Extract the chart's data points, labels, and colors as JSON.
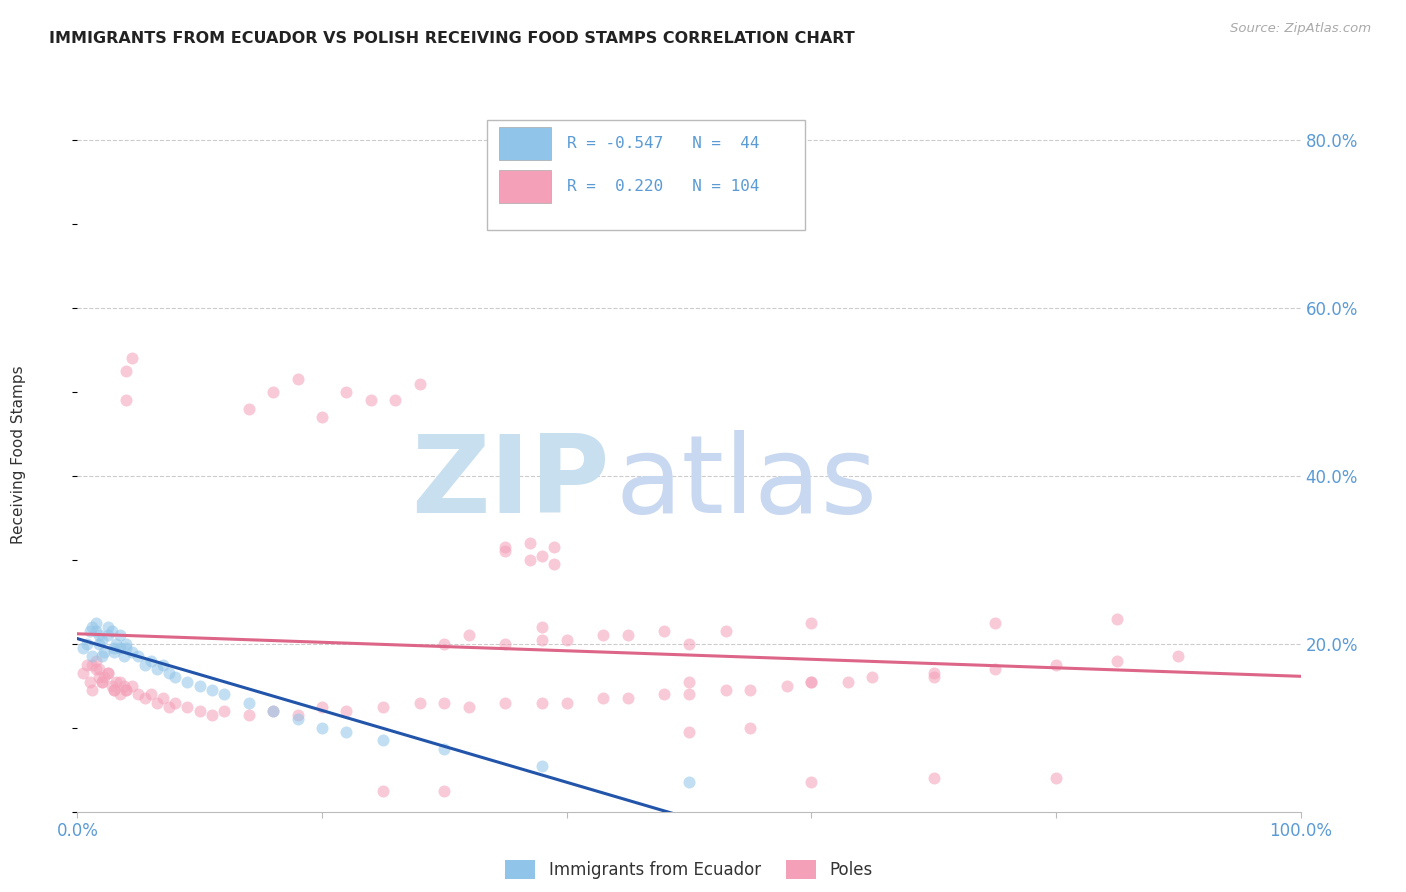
{
  "title": "IMMIGRANTS FROM ECUADOR VS POLISH RECEIVING FOOD STAMPS CORRELATION CHART",
  "source": "Source: ZipAtlas.com",
  "tick_color": "#5b9bd5",
  "ylabel": "Receiving Food Stamps",
  "xlim": [
    0.0,
    1.0
  ],
  "ylim": [
    0.0,
    0.85
  ],
  "xticklabels": [
    "0.0%",
    "",
    "",
    "",
    "",
    "100.0%"
  ],
  "xtick_positions": [
    0.0,
    0.2,
    0.4,
    0.6,
    0.8,
    1.0
  ],
  "ytick_positions": [
    0.2,
    0.4,
    0.6,
    0.8
  ],
  "ytick_labels": [
    "20.0%",
    "40.0%",
    "60.0%",
    "80.0%"
  ],
  "grid_color": "#cccccc",
  "color_ecuador": "#90c4e8",
  "color_poles": "#f4a0b8",
  "line_color_ecuador": "#2255aa",
  "line_color_poles": "#dd6688",
  "marker_alpha": 0.55,
  "marker_size": 75,
  "ecuador_x": [
    0.005,
    0.008,
    0.01,
    0.012,
    0.015,
    0.018,
    0.02,
    0.022,
    0.025,
    0.028,
    0.03,
    0.032,
    0.035,
    0.038,
    0.04,
    0.012,
    0.015,
    0.018,
    0.02,
    0.025,
    0.03,
    0.035,
    0.04,
    0.045,
    0.05,
    0.055,
    0.06,
    0.065,
    0.07,
    0.075,
    0.08,
    0.09,
    0.1,
    0.11,
    0.12,
    0.14,
    0.16,
    0.18,
    0.2,
    0.22,
    0.25,
    0.3,
    0.38,
    0.5
  ],
  "ecuador_y": [
    0.195,
    0.2,
    0.215,
    0.185,
    0.225,
    0.21,
    0.205,
    0.19,
    0.22,
    0.215,
    0.195,
    0.2,
    0.21,
    0.185,
    0.195,
    0.22,
    0.215,
    0.2,
    0.185,
    0.21,
    0.19,
    0.195,
    0.2,
    0.19,
    0.185,
    0.175,
    0.18,
    0.17,
    0.175,
    0.165,
    0.16,
    0.155,
    0.15,
    0.145,
    0.14,
    0.13,
    0.12,
    0.11,
    0.1,
    0.095,
    0.085,
    0.075,
    0.055,
    0.035
  ],
  "poles_x": [
    0.005,
    0.008,
    0.01,
    0.012,
    0.015,
    0.018,
    0.02,
    0.022,
    0.025,
    0.028,
    0.03,
    0.032,
    0.035,
    0.038,
    0.04,
    0.012,
    0.015,
    0.018,
    0.02,
    0.025,
    0.03,
    0.035,
    0.04,
    0.045,
    0.05,
    0.055,
    0.06,
    0.065,
    0.07,
    0.075,
    0.08,
    0.09,
    0.1,
    0.11,
    0.12,
    0.14,
    0.16,
    0.18,
    0.2,
    0.22,
    0.25,
    0.28,
    0.3,
    0.32,
    0.35,
    0.38,
    0.4,
    0.43,
    0.45,
    0.48,
    0.5,
    0.53,
    0.55,
    0.58,
    0.6,
    0.63,
    0.65,
    0.7,
    0.75,
    0.8,
    0.85,
    0.9,
    0.35,
    0.38,
    0.37,
    0.39,
    0.35,
    0.37,
    0.39,
    0.04,
    0.04,
    0.045,
    0.14,
    0.16,
    0.18,
    0.2,
    0.22,
    0.24,
    0.26,
    0.28,
    0.3,
    0.32,
    0.35,
    0.38,
    0.4,
    0.43,
    0.45,
    0.48,
    0.5,
    0.53,
    0.38,
    0.6,
    0.75,
    0.85,
    0.5,
    0.6,
    0.7,
    0.25,
    0.3,
    0.6,
    0.7,
    0.8,
    0.5,
    0.55
  ],
  "poles_y": [
    0.165,
    0.175,
    0.155,
    0.145,
    0.18,
    0.17,
    0.155,
    0.16,
    0.165,
    0.15,
    0.145,
    0.155,
    0.14,
    0.15,
    0.145,
    0.175,
    0.17,
    0.16,
    0.155,
    0.165,
    0.145,
    0.155,
    0.145,
    0.15,
    0.14,
    0.135,
    0.14,
    0.13,
    0.135,
    0.125,
    0.13,
    0.125,
    0.12,
    0.115,
    0.12,
    0.115,
    0.12,
    0.115,
    0.125,
    0.12,
    0.125,
    0.13,
    0.13,
    0.125,
    0.13,
    0.13,
    0.13,
    0.135,
    0.135,
    0.14,
    0.14,
    0.145,
    0.145,
    0.15,
    0.155,
    0.155,
    0.16,
    0.165,
    0.17,
    0.175,
    0.18,
    0.185,
    0.31,
    0.305,
    0.3,
    0.295,
    0.315,
    0.32,
    0.315,
    0.49,
    0.525,
    0.54,
    0.48,
    0.5,
    0.515,
    0.47,
    0.5,
    0.49,
    0.49,
    0.51,
    0.2,
    0.21,
    0.2,
    0.205,
    0.205,
    0.21,
    0.21,
    0.215,
    0.2,
    0.215,
    0.22,
    0.225,
    0.225,
    0.23,
    0.155,
    0.155,
    0.16,
    0.025,
    0.025,
    0.035,
    0.04,
    0.04,
    0.095,
    0.1
  ],
  "legend_r1": "R = -0.547",
  "legend_n1": "N =  44",
  "legend_r2": "R =  0.220",
  "legend_n2": "N = 104",
  "watermark_zip_color": "#c8dff0",
  "watermark_atlas_color": "#c8d8f0"
}
